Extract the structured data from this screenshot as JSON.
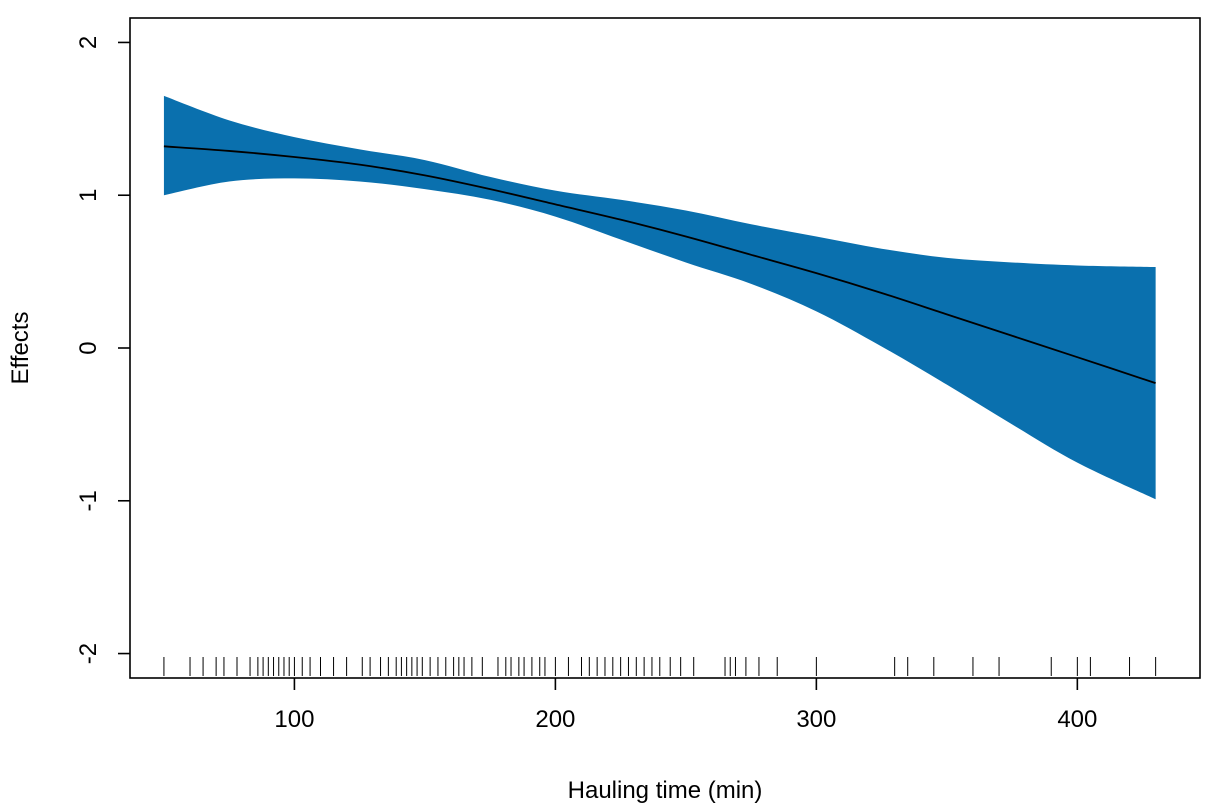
{
  "chart_data": {
    "type": "area",
    "xlabel": "Hauling time (min)",
    "ylabel": "Effects",
    "xlim": [
      37,
      447
    ],
    "ylim": [
      -2.16,
      2.16
    ],
    "x_ticks": [
      100,
      200,
      300,
      400
    ],
    "x_tick_labels": [
      "100",
      "200",
      "300",
      "400"
    ],
    "y_ticks": [
      -2,
      -1,
      0,
      1,
      2
    ],
    "y_tick_labels": [
      "-2",
      "-1",
      "0",
      "1",
      "2"
    ],
    "grid": false,
    "band_color": "#0a70ae",
    "line_color": "#000000",
    "series": [
      {
        "x": [
          50,
          75,
          100,
          125,
          150,
          175,
          200,
          225,
          250,
          275,
          300,
          325,
          350,
          375,
          400,
          430
        ],
        "fit": [
          1.32,
          1.29,
          1.25,
          1.2,
          1.13,
          1.04,
          0.94,
          0.84,
          0.73,
          0.61,
          0.49,
          0.36,
          0.22,
          0.08,
          -0.06,
          -0.23
        ],
        "lower": [
          1.0,
          1.09,
          1.11,
          1.09,
          1.04,
          0.97,
          0.86,
          0.71,
          0.56,
          0.42,
          0.24,
          0.01,
          -0.24,
          -0.5,
          -0.75,
          -0.99
        ],
        "upper": [
          1.65,
          1.49,
          1.38,
          1.3,
          1.23,
          1.12,
          1.03,
          0.97,
          0.9,
          0.81,
          0.73,
          0.65,
          0.59,
          0.56,
          0.54,
          0.53
        ]
      }
    ],
    "rug": [
      50,
      60,
      65,
      70,
      73,
      78,
      83,
      86,
      88,
      90,
      92,
      94,
      96,
      98,
      100,
      103,
      106,
      110,
      115,
      120,
      126,
      129,
      133,
      136,
      139,
      141,
      143,
      145,
      147,
      149,
      152,
      155,
      158,
      161,
      163,
      165,
      168,
      172,
      178,
      181,
      183,
      186,
      188,
      191,
      194,
      196,
      200,
      205,
      210,
      213,
      216,
      219,
      222,
      225,
      228,
      231,
      234,
      237,
      240,
      244,
      248,
      253,
      265,
      267,
      269,
      273,
      278,
      285,
      300,
      330,
      335,
      345,
      360,
      370,
      390,
      400,
      405,
      420,
      430
    ]
  }
}
